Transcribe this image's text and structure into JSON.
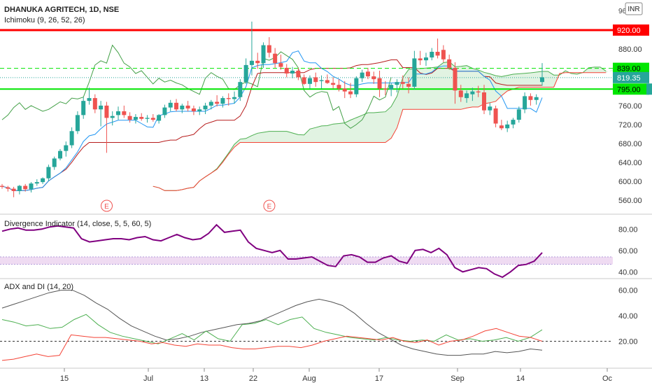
{
  "header": {
    "title": "DHANUKA AGRITECH, 1D, NSE",
    "indicator": "Ichimoku (9, 26, 52, 26)",
    "currency": "INR",
    "price_cut": "96"
  },
  "panes": {
    "divergence_title": "Divergence Indicator (14, close, 5, 5, 60, 5)",
    "adx_title": "ADX and DI (14, 20)"
  },
  "colors": {
    "up": "#26a69a",
    "down": "#ef5350",
    "tenkan": "#2196f3",
    "kijun": "#b71c1c",
    "chikou": "#43a047",
    "span_a": "#4caf50",
    "span_b": "#f44336",
    "cloud": "#d7efd8",
    "red_line": "#ff0000",
    "green_line": "#00e600",
    "div_line": "#800080",
    "adx": "#555555",
    "di_plus": "#4caf50",
    "di_minus": "#f44336"
  },
  "chart_data": [
    {
      "type": "candlestick",
      "title": "DHANUKA AGRITECH, 1D, NSE",
      "ylim": [
        530,
        960
      ],
      "y_ticks": [
        "880.00",
        "840.00",
        "800.00",
        "760.00",
        "720.00",
        "680.00",
        "640.00",
        "600.00",
        "560.00"
      ],
      "x_ticks": [
        "15",
        "Jul",
        "13",
        "22",
        "Aug",
        "17",
        "Sep",
        "14",
        "Oc"
      ],
      "price_labels": {
        "red_level": "920.00",
        "green_dashed": "839.00",
        "last": "819.35",
        "green_level": "795.00"
      },
      "levels": {
        "red": 920,
        "green_dashed": 839,
        "last": 819.35,
        "green": 795
      },
      "candles_ohlc": [
        [
          590,
          594,
          584,
          588
        ],
        [
          587,
          590,
          578,
          584
        ],
        [
          584,
          588,
          566,
          579
        ],
        [
          579,
          592,
          572,
          590
        ],
        [
          590,
          594,
          578,
          583
        ],
        [
          583,
          598,
          576,
          595
        ],
        [
          595,
          604,
          590,
          598
        ],
        [
          598,
          608,
          594,
          606
        ],
        [
          606,
          635,
          600,
          630
        ],
        [
          630,
          652,
          624,
          648
        ],
        [
          648,
          668,
          644,
          664
        ],
        [
          664,
          684,
          652,
          676
        ],
        [
          676,
          714,
          670,
          706
        ],
        [
          706,
          748,
          700,
          740
        ],
        [
          740,
          778,
          732,
          770
        ],
        [
          770,
          798,
          762,
          776
        ],
        [
          776,
          784,
          744,
          752
        ],
        [
          752,
          770,
          716,
          760
        ],
        [
          760,
          768,
          660,
          734
        ],
        [
          734,
          748,
          718,
          738
        ],
        [
          740,
          758,
          730,
          748
        ],
        [
          748,
          760,
          734,
          740
        ],
        [
          738,
          746,
          724,
          730
        ],
        [
          730,
          742,
          722,
          736
        ],
        [
          736,
          744,
          728,
          732
        ],
        [
          732,
          740,
          724,
          734
        ],
        [
          734,
          742,
          726,
          730
        ],
        [
          728,
          742,
          722,
          740
        ],
        [
          740,
          762,
          734,
          756
        ],
        [
          756,
          772,
          748,
          766
        ],
        [
          766,
          774,
          748,
          752
        ],
        [
          752,
          764,
          744,
          760
        ],
        [
          760,
          770,
          748,
          754
        ],
        [
          754,
          760,
          740,
          748
        ],
        [
          748,
          758,
          740,
          752
        ],
        [
          752,
          766,
          742,
          760
        ],
        [
          760,
          772,
          752,
          768
        ],
        [
          768,
          782,
          758,
          764
        ],
        [
          764,
          780,
          756,
          776
        ],
        [
          776,
          786,
          760,
          774
        ],
        [
          774,
          790,
          764,
          778
        ],
        [
          778,
          816,
          770,
          810
        ],
        [
          810,
          860,
          806,
          846
        ],
        [
          846,
          938,
          824,
          855
        ],
        [
          855,
          872,
          838,
          850
        ],
        [
          850,
          894,
          840,
          888
        ],
        [
          888,
          905,
          862,
          872
        ],
        [
          870,
          882,
          840,
          850
        ],
        [
          850,
          868,
          836,
          842
        ],
        [
          840,
          848,
          820,
          828
        ],
        [
          828,
          842,
          818,
          834
        ],
        [
          834,
          840,
          814,
          820
        ],
        [
          820,
          826,
          804,
          806
        ],
        [
          806,
          824,
          796,
          818
        ],
        [
          820,
          830,
          800,
          810
        ],
        [
          812,
          824,
          796,
          814
        ],
        [
          814,
          826,
          806,
          808
        ],
        [
          808,
          820,
          796,
          804
        ],
        [
          804,
          816,
          790,
          796
        ],
        [
          796,
          812,
          776,
          790
        ],
        [
          790,
          808,
          776,
          784
        ],
        [
          784,
          822,
          778,
          818
        ],
        [
          818,
          836,
          810,
          830
        ],
        [
          832,
          840,
          816,
          822
        ],
        [
          822,
          832,
          806,
          816
        ],
        [
          818,
          834,
          778,
          796
        ],
        [
          796,
          812,
          782,
          794
        ],
        [
          794,
          808,
          780,
          804
        ],
        [
          804,
          816,
          788,
          810
        ],
        [
          810,
          824,
          796,
          806
        ],
        [
          806,
          820,
          786,
          800
        ],
        [
          800,
          876,
          794,
          860
        ],
        [
          860,
          876,
          846,
          856
        ],
        [
          856,
          872,
          844,
          862
        ],
        [
          862,
          882,
          856,
          874
        ],
        [
          874,
          902,
          860,
          866
        ],
        [
          878,
          888,
          852,
          858
        ],
        [
          858,
          868,
          836,
          840
        ],
        [
          840,
          852,
          764,
          792
        ],
        [
          792,
          804,
          768,
          778
        ],
        [
          776,
          792,
          766,
          786
        ],
        [
          784,
          798,
          770,
          790
        ],
        [
          790,
          802,
          778,
          788
        ],
        [
          788,
          804,
          742,
          750
        ],
        [
          750,
          766,
          740,
          758
        ],
        [
          754,
          760,
          714,
          722
        ],
        [
          718,
          730,
          708,
          712
        ],
        [
          712,
          728,
          704,
          720
        ],
        [
          720,
          734,
          712,
          730
        ],
        [
          730,
          758,
          724,
          752
        ],
        [
          752,
          788,
          744,
          780
        ],
        [
          780,
          786,
          760,
          772
        ],
        [
          772,
          784,
          762,
          778
        ],
        [
          810,
          850,
          802,
          820
        ]
      ],
      "events": [
        {
          "label": "E",
          "at": "15"
        },
        {
          "label": "E",
          "at": "22"
        }
      ]
    },
    {
      "type": "line",
      "title": "Divergence Indicator (14, close, 5, 5, 60, 5)",
      "ylim": [
        35,
        90
      ],
      "y_ticks": [
        "80.00",
        "60.00",
        "40.00"
      ],
      "band": [
        47,
        54
      ],
      "series": [
        {
          "values": [
            78,
            80,
            81,
            79,
            79,
            80,
            82,
            83,
            82,
            81,
            71,
            68,
            69,
            70,
            71,
            71,
            70,
            72,
            73,
            70,
            69,
            72,
            75,
            72,
            70,
            71,
            76,
            84,
            77,
            78,
            79,
            68,
            62,
            60,
            58,
            60,
            52,
            52,
            53,
            54,
            50,
            46,
            45,
            55,
            56,
            54,
            49,
            49,
            53,
            55,
            50,
            48,
            60,
            61,
            58,
            62,
            56,
            44,
            40,
            42,
            44,
            43,
            38,
            35,
            40,
            46,
            47,
            50,
            58
          ]
        }
      ]
    },
    {
      "type": "line",
      "title": "ADX and DI (14, 20)",
      "ylim": [
        0,
        68
      ],
      "y_ticks": [
        "60.00",
        "40.00",
        "20.00"
      ],
      "threshold": 20,
      "series": [
        {
          "values": [
            46,
            49,
            52,
            55,
            58,
            60,
            60,
            56,
            50,
            45,
            38,
            32,
            28,
            24,
            21,
            22,
            24,
            27,
            29,
            31,
            33,
            34,
            36,
            40,
            44,
            48,
            51,
            53,
            51,
            48,
            42,
            34,
            27,
            22,
            17,
            14,
            12,
            10,
            9,
            9,
            10,
            10,
            12,
            11,
            12,
            14,
            13
          ]
        },
        {
          "values": [
            37,
            35,
            32,
            33,
            30,
            31,
            37,
            41,
            33,
            27,
            24,
            22,
            20,
            18,
            22,
            26,
            21,
            28,
            22,
            20,
            33,
            34,
            37,
            33,
            37,
            39,
            30,
            27,
            25,
            23,
            22,
            21,
            23,
            21,
            20,
            21,
            20,
            25,
            21,
            22,
            20,
            21,
            23,
            20,
            23,
            29
          ]
        },
        {
          "values": [
            5,
            6,
            8,
            10,
            8,
            9,
            25,
            24,
            23,
            23,
            22,
            21,
            20,
            18,
            19,
            17,
            16,
            18,
            17,
            17,
            15,
            14,
            14,
            15,
            16,
            16,
            15,
            17,
            20,
            22,
            24,
            23,
            22,
            21,
            23,
            20,
            19,
            21,
            17,
            20,
            21,
            24,
            28,
            30,
            27,
            24,
            23,
            20
          ]
        }
      ]
    }
  ]
}
